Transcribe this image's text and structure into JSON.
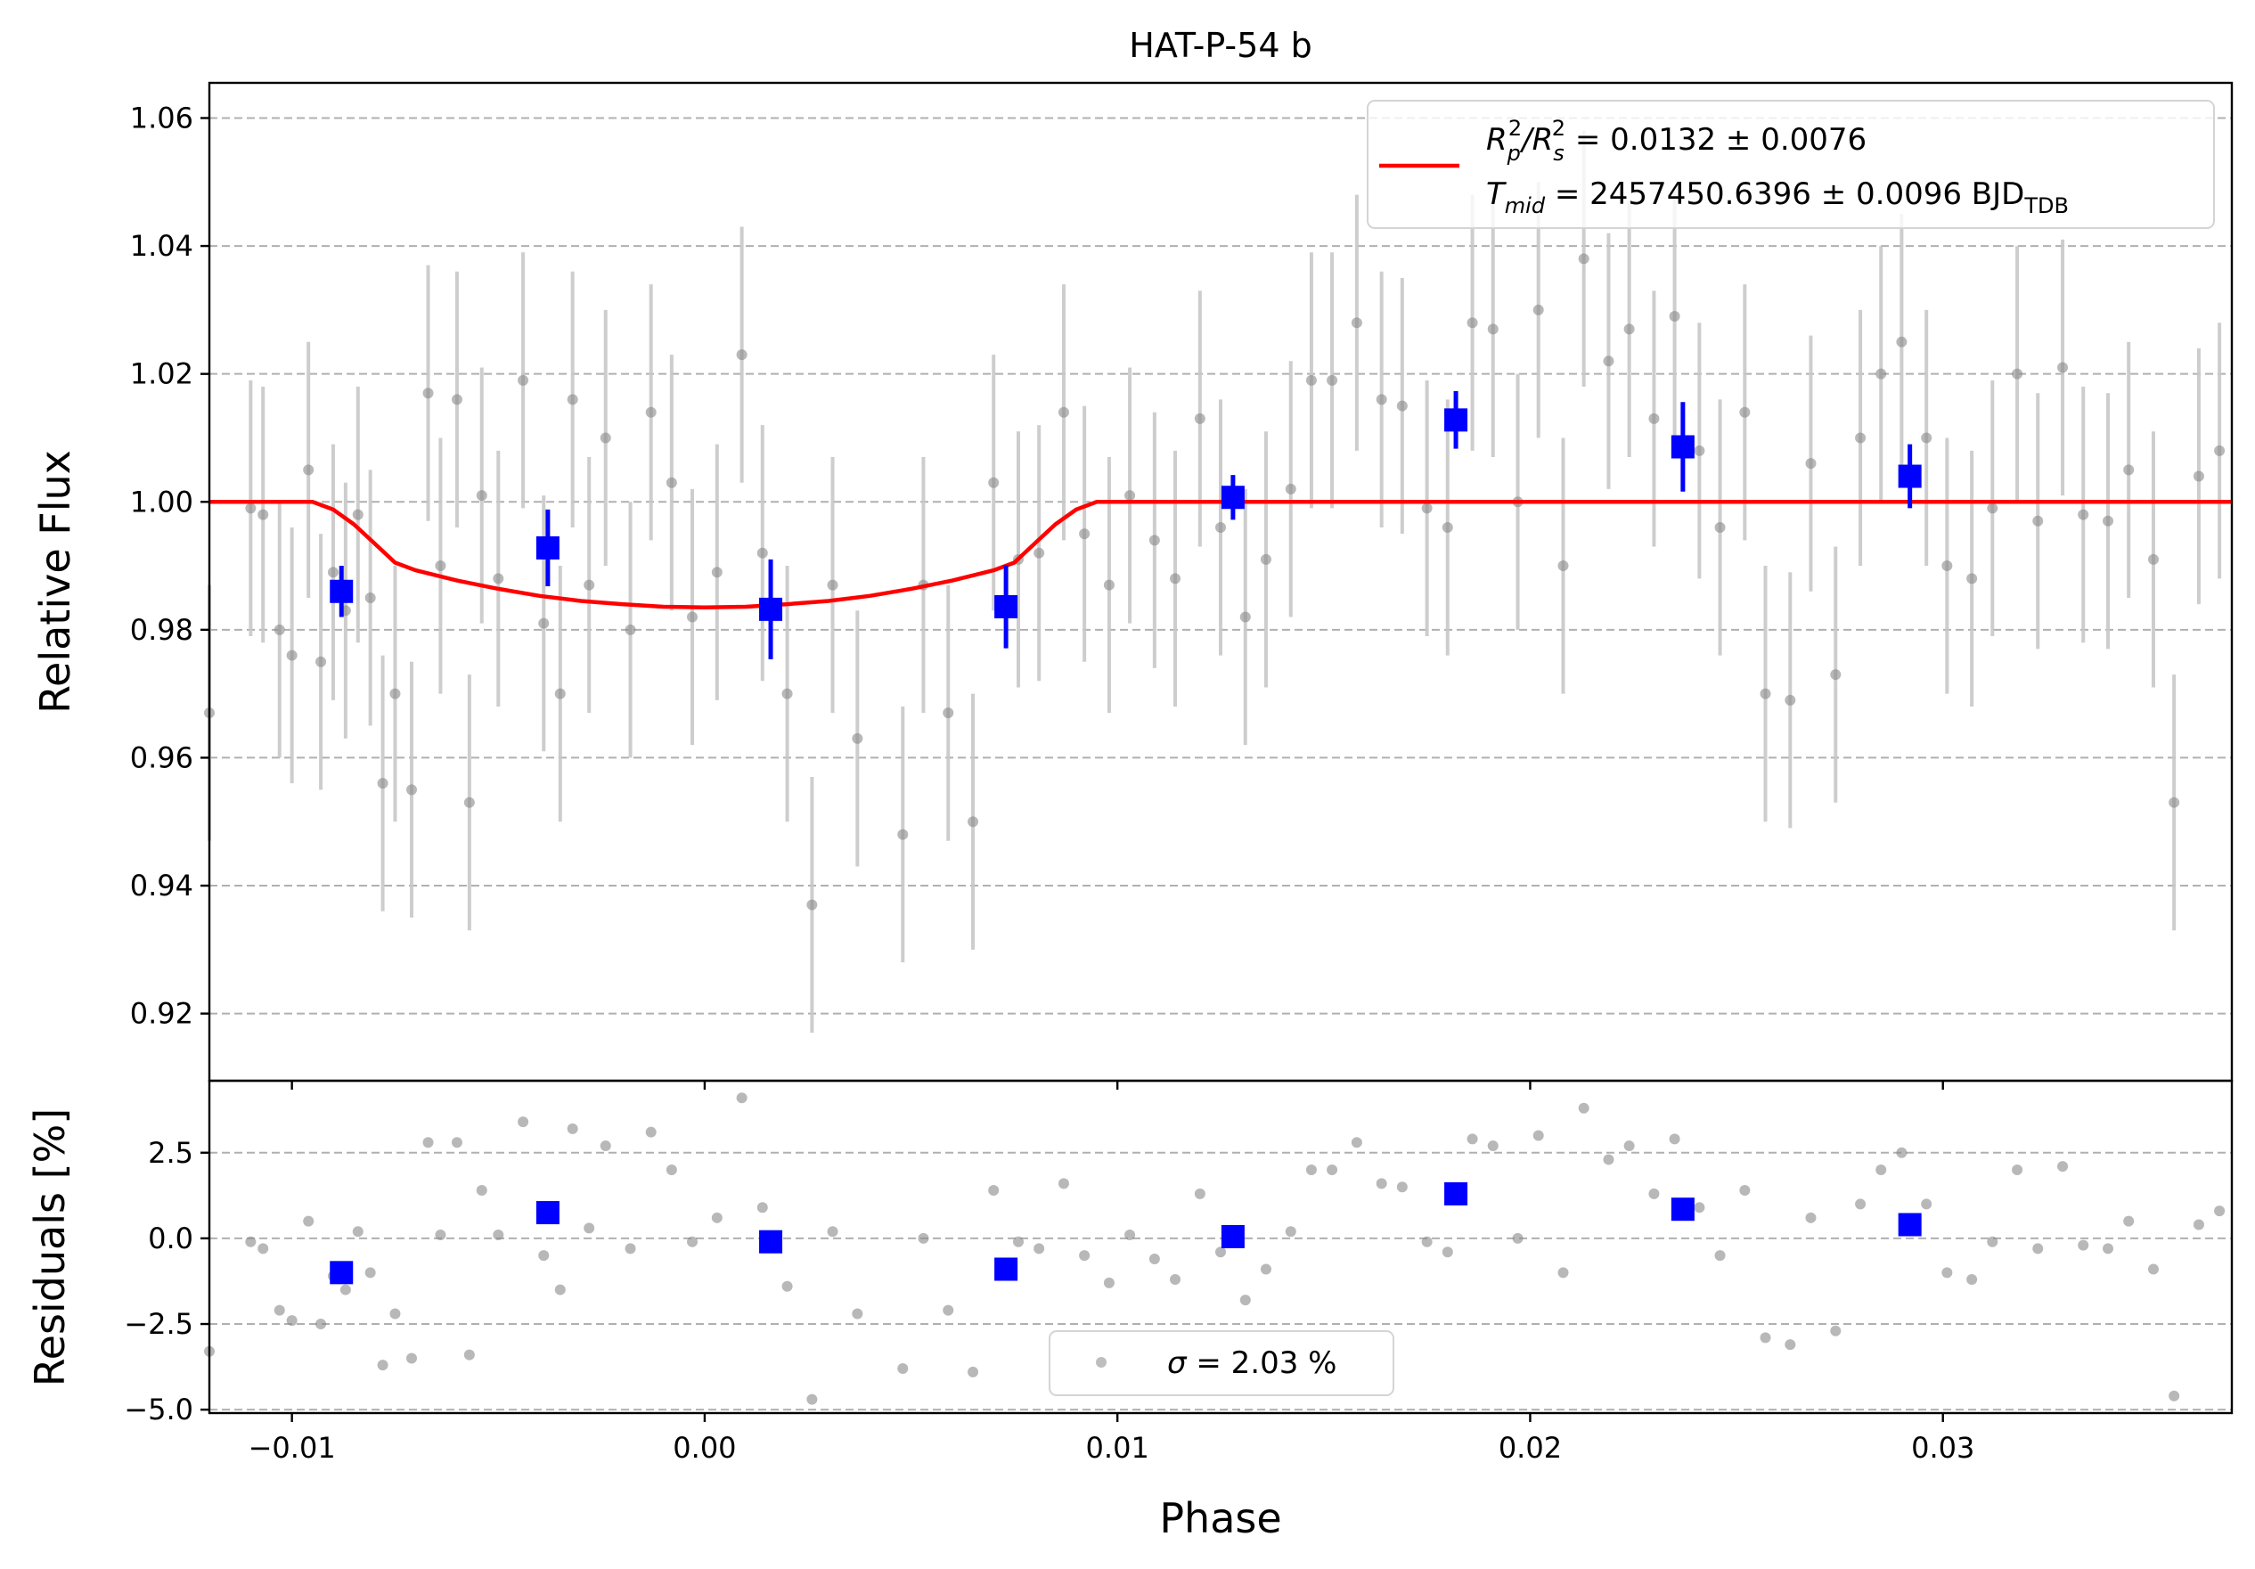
{
  "chart_data": [
    {
      "type": "scatter",
      "panel": "main",
      "title": "HAT-P-54 b",
      "xlabel": "",
      "ylabel": "Relative Flux",
      "xlim": [
        -0.012,
        0.037
      ],
      "ylim": [
        0.9095,
        1.0655
      ],
      "x_ticks": [
        -0.01,
        0.0,
        0.01,
        0.02,
        0.03
      ],
      "y_ticks": [
        0.92,
        0.94,
        0.96,
        0.98,
        1.0,
        1.02,
        1.04,
        1.06
      ],
      "y_tick_labels": [
        "0.92",
        "0.94",
        "0.96",
        "0.98",
        "1.00",
        "1.02",
        "1.04",
        "1.06"
      ],
      "grid": "horizontal dashed",
      "legend": {
        "placement": "upper right",
        "entries": [
          {
            "label": "R_p^2/R_s^2 = 0.0132 ± 0.0076",
            "kind": "line",
            "color": "#ff0000"
          },
          {
            "label": "T_mid = 2457450.6396 ± 0.0096 BJD_TDB",
            "kind": "none"
          }
        ],
        "line1": {
          "pre": "R",
          "sub_a": "p",
          "sup_a": "2",
          "slash": "/R",
          "sub_b": "s",
          "sup_b": "2",
          "tail": " = 0.0132 ± 0.0076"
        },
        "line2": {
          "pre": "T",
          "sub_a": "mid",
          "mid": " = 2457450.6396 ± 0.0096 BJD",
          "sub_b": "TDB"
        }
      },
      "model": {
        "color": "#ff0000",
        "x": [
          -0.012,
          -0.0095,
          -0.009,
          -0.0085,
          -0.008,
          -0.0075,
          -0.007,
          -0.006,
          -0.005,
          -0.004,
          -0.003,
          -0.002,
          -0.001,
          0.0,
          0.001,
          0.002,
          0.003,
          0.004,
          0.005,
          0.006,
          0.007,
          0.0075,
          0.008,
          0.0085,
          0.009,
          0.0095,
          0.037
        ],
        "y": [
          1.0,
          1.0,
          0.9988,
          0.9965,
          0.9935,
          0.9905,
          0.9893,
          0.9877,
          0.9864,
          0.9853,
          0.9845,
          0.984,
          0.9836,
          0.9835,
          0.9836,
          0.984,
          0.9845,
          0.9853,
          0.9864,
          0.9877,
          0.9893,
          0.9905,
          0.9935,
          0.9965,
          0.9988,
          1.0,
          1.0
        ]
      },
      "data_points": {
        "color": "#888888",
        "err_color": "#c8c8c8",
        "x": [
          -0.012,
          -0.011,
          -0.0107,
          -0.0103,
          -0.01,
          -0.0096,
          -0.0093,
          -0.009,
          -0.0087,
          -0.0084,
          -0.0081,
          -0.0078,
          -0.0075,
          -0.0071,
          -0.0067,
          -0.0064,
          -0.006,
          -0.0057,
          -0.0054,
          -0.005,
          -0.0044,
          -0.0039,
          -0.0035,
          -0.0032,
          -0.0028,
          -0.0024,
          -0.0018,
          -0.0013,
          -0.0008,
          -0.0003,
          0.0003,
          0.0009,
          0.0014,
          0.002,
          0.0026,
          0.0031,
          0.0037,
          0.0048,
          0.0053,
          0.0059,
          0.0065,
          0.007,
          0.0076,
          0.0081,
          0.0087,
          0.0092,
          0.0098,
          0.0103,
          0.0109,
          0.0114,
          0.012,
          0.0125,
          0.0131,
          0.0136,
          0.0142,
          0.0147,
          0.0152,
          0.0158,
          0.0164,
          0.0169,
          0.0175,
          0.018,
          0.0186,
          0.0191,
          0.0197,
          0.0202,
          0.0208,
          0.0213,
          0.0219,
          0.0224,
          0.023,
          0.0235,
          0.0241,
          0.0246,
          0.0252,
          0.0257,
          0.0263,
          0.0268,
          0.0274,
          0.028,
          0.0285,
          0.029,
          0.0296,
          0.0301,
          0.0307,
          0.0312,
          0.0318,
          0.0323,
          0.0329,
          0.0334,
          0.034,
          0.0345,
          0.0351,
          0.0356,
          0.0362,
          0.0367
        ],
        "y": [
          0.967,
          0.999,
          0.998,
          0.98,
          0.976,
          1.005,
          0.975,
          0.989,
          0.983,
          0.998,
          0.985,
          0.956,
          0.97,
          0.955,
          1.017,
          0.99,
          1.016,
          0.953,
          1.001,
          0.988,
          1.019,
          0.981,
          0.97,
          1.016,
          0.987,
          1.01,
          0.98,
          1.014,
          1.003,
          0.982,
          0.989,
          1.023,
          0.992,
          0.97,
          0.937,
          0.987,
          0.963,
          0.948,
          0.987,
          0.967,
          0.95,
          1.003,
          0.991,
          0.992,
          1.014,
          0.995,
          0.987,
          1.001,
          0.994,
          0.988,
          1.013,
          0.996,
          0.982,
          0.991,
          1.002,
          1.019,
          1.019,
          1.028,
          1.016,
          1.015,
          0.999,
          0.996,
          1.028,
          1.027,
          1.0,
          1.03,
          0.99,
          1.038,
          1.022,
          1.027,
          1.013,
          1.029,
          1.008,
          0.996,
          1.014,
          0.97,
          0.969,
          1.006,
          0.973,
          1.01,
          1.02,
          1.025,
          1.01,
          0.99,
          0.988,
          0.999,
          1.02,
          0.997,
          1.021,
          0.998,
          0.997,
          1.005,
          0.991,
          0.953,
          1.004,
          1.008
        ],
        "yerr": 0.02
      },
      "binned_points": {
        "color": "#0000ff",
        "x": [
          -0.0088,
          -0.0038,
          0.0016,
          0.0073,
          0.0128,
          0.0182,
          0.0237,
          0.0292
        ],
        "y": [
          0.986,
          0.9928,
          0.9832,
          0.9836,
          1.0007,
          1.0128,
          1.0086,
          1.004
        ],
        "yerr": [
          0.004,
          0.006,
          0.0078,
          0.0065,
          0.0035,
          0.0045,
          0.007,
          0.005
        ]
      }
    },
    {
      "type": "scatter",
      "panel": "residuals",
      "xlabel": "Phase",
      "ylabel": "Residuals [%]",
      "xlim": [
        -0.012,
        0.037
      ],
      "ylim": [
        -5.1,
        4.6
      ],
      "x_ticks": [
        -0.01,
        0.0,
        0.01,
        0.02,
        0.03
      ],
      "x_tick_labels": [
        "−0.01",
        "0.00",
        "0.01",
        "0.02",
        "0.03"
      ],
      "y_ticks": [
        -5.0,
        -2.5,
        0.0,
        2.5
      ],
      "y_tick_labels": [
        "−5.0",
        "−2.5",
        "0.0",
        "2.5"
      ],
      "grid": "horizontal dashed",
      "legend": {
        "placement": "lower center",
        "entries": [
          {
            "label": "σ = 2.03 %",
            "kind": "marker",
            "color": "#888888"
          }
        ],
        "sigma_symbol": "σ",
        "sigma_value": " = 2.03 %"
      },
      "data_points": {
        "color": "#888888",
        "x": [
          -0.012,
          -0.011,
          -0.0107,
          -0.0103,
          -0.01,
          -0.0096,
          -0.0093,
          -0.009,
          -0.0087,
          -0.0084,
          -0.0081,
          -0.0078,
          -0.0075,
          -0.0071,
          -0.0067,
          -0.0064,
          -0.006,
          -0.0057,
          -0.0054,
          -0.005,
          -0.0044,
          -0.0039,
          -0.0035,
          -0.0032,
          -0.0028,
          -0.0024,
          -0.0018,
          -0.0013,
          -0.0008,
          -0.0003,
          0.0003,
          0.0009,
          0.0014,
          0.002,
          0.0026,
          0.0031,
          0.0037,
          0.0048,
          0.0053,
          0.0059,
          0.0065,
          0.007,
          0.0076,
          0.0081,
          0.0087,
          0.0092,
          0.0098,
          0.0103,
          0.0109,
          0.0114,
          0.012,
          0.0125,
          0.0131,
          0.0136,
          0.0142,
          0.0147,
          0.0152,
          0.0158,
          0.0164,
          0.0169,
          0.0175,
          0.018,
          0.0186,
          0.0191,
          0.0197,
          0.0202,
          0.0208,
          0.0213,
          0.0219,
          0.0224,
          0.023,
          0.0235,
          0.0241,
          0.0246,
          0.0252,
          0.0257,
          0.0263,
          0.0268,
          0.0274,
          0.028,
          0.0285,
          0.029,
          0.0296,
          0.0301,
          0.0307,
          0.0312,
          0.0318,
          0.0323,
          0.0329,
          0.0334,
          0.034,
          0.0345,
          0.0351,
          0.0356,
          0.0362,
          0.0367
        ],
        "y": [
          -3.3,
          -0.1,
          -0.3,
          -2.1,
          -2.4,
          0.5,
          -2.5,
          -1.1,
          -1.5,
          0.2,
          -1.0,
          -3.7,
          -2.2,
          -3.5,
          2.8,
          0.1,
          2.8,
          -3.4,
          1.4,
          0.1,
          3.4,
          -0.5,
          -1.5,
          3.2,
          0.3,
          2.7,
          -0.3,
          3.1,
          2.0,
          -0.1,
          0.6,
          4.1,
          0.9,
          -1.4,
          -4.7,
          0.2,
          -2.2,
          -3.8,
          0.0,
          -2.1,
          -3.9,
          1.4,
          -0.1,
          -0.3,
          1.6,
          -0.5,
          -1.3,
          0.1,
          -0.6,
          -1.2,
          1.3,
          -0.4,
          -1.8,
          -0.9,
          0.2,
          2.0,
          2.0,
          2.8,
          1.6,
          1.5,
          -0.1,
          -0.4,
          2.9,
          2.7,
          0.0,
          3.0,
          -1.0,
          3.8,
          2.3,
          2.7,
          1.3,
          2.9,
          0.9,
          -0.5,
          1.4,
          -2.9,
          -3.1,
          0.6,
          -2.7,
          1.0,
          2.0,
          2.5,
          1.0,
          -1.0,
          -1.2,
          -0.1,
          2.0,
          -0.3,
          2.1,
          -0.2,
          -0.3,
          0.5,
          -0.9,
          -4.6,
          0.4,
          0.8
        ]
      },
      "binned_points": {
        "color": "#0000ff",
        "x": [
          -0.0088,
          -0.0038,
          0.0016,
          0.0073,
          0.0128,
          0.0182,
          0.0237,
          0.0292
        ],
        "y": [
          -1.0,
          0.75,
          -0.1,
          -0.9,
          0.05,
          1.3,
          0.85,
          0.4
        ]
      }
    }
  ]
}
